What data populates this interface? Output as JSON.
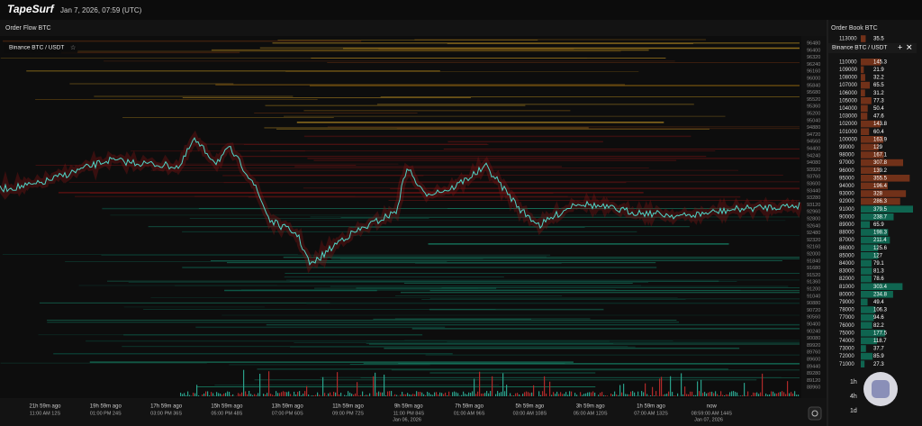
{
  "header": {
    "brand": "TapeSurf",
    "datetime": "Jan 7, 2026, 07:59 (UTC)"
  },
  "order_flow": {
    "title": "Order Flow BTC",
    "symbol": "Binance BTC / USDT",
    "price_labels": [
      "96480",
      "96400",
      "96320",
      "96240",
      "96160",
      "96000",
      "95840",
      "95680",
      "95520",
      "95360",
      "95200",
      "95040",
      "94880",
      "94720",
      "94560",
      "94400",
      "94240",
      "94080",
      "93920",
      "93760",
      "93600",
      "93440",
      "93280",
      "93120",
      "92960",
      "92800",
      "92640",
      "92480",
      "92320",
      "92160",
      "92000",
      "91840",
      "91680",
      "91520",
      "91360",
      "91200",
      "91040",
      "90880",
      "90720",
      "90560",
      "90400",
      "90240",
      "90080",
      "89920",
      "89760",
      "89600",
      "89440",
      "89280",
      "89120",
      "88960"
    ],
    "time_labels": [
      {
        "ago": "21h 59m ago",
        "time": "11:00 AM 12S"
      },
      {
        "ago": "19h 59m ago",
        "time": "01:00 PM 24S"
      },
      {
        "ago": "17h 59m ago",
        "time": "03:00 PM 36S"
      },
      {
        "ago": "15h 59m ago",
        "time": "05:00 PM 48S"
      },
      {
        "ago": "13h 59m ago",
        "time": "07:00 PM 60S"
      },
      {
        "ago": "11h 59m ago",
        "time": "09:00 PM 72S"
      },
      {
        "ago": "9h 59m ago",
        "time": "11:00 PM 84S"
      },
      {
        "ago": "7h 59m ago",
        "time": "01:00 AM 96S"
      },
      {
        "ago": "5h 59m ago",
        "time": "03:00 AM 108S"
      },
      {
        "ago": "3h 59m ago",
        "time": "05:00 AM 120S"
      },
      {
        "ago": "1h 59m ago",
        "time": "07:00 AM 132S"
      },
      {
        "ago": "now",
        "time": "08:59:00 AM 144S"
      }
    ],
    "date_labels": [
      "Jan 06, 2026",
      "Jan 07, 2026"
    ]
  },
  "order_book": {
    "title": "Order Book BTC",
    "symbol": "Binance BTC / USDT",
    "ask_color": "#8a3a1c",
    "bid_color": "#0f7a60",
    "asks": [
      {
        "price": 113000,
        "size": 35.5
      },
      {
        "price": 110000,
        "size": 145.3
      },
      {
        "price": 109000,
        "size": 21.9
      },
      {
        "price": 108000,
        "size": 32.2
      },
      {
        "price": 107000,
        "size": 65.5
      },
      {
        "price": 106000,
        "size": 31.2
      },
      {
        "price": 105000,
        "size": 77.3
      },
      {
        "price": 104000,
        "size": 50.4
      },
      {
        "price": 103000,
        "size": 47.6
      },
      {
        "price": 102000,
        "size": 143.8
      },
      {
        "price": 101000,
        "size": 60.4
      },
      {
        "price": 100000,
        "size": 163.9
      },
      {
        "price": 99000,
        "size": 129.0
      },
      {
        "price": 98000,
        "size": 167.1
      },
      {
        "price": 97000,
        "size": 307.8
      },
      {
        "price": 96000,
        "size": 139.2
      },
      {
        "price": 95000,
        "size": 355.5
      },
      {
        "price": 94000,
        "size": 196.4
      },
      {
        "price": 93000,
        "size": 328.0
      },
      {
        "price": 92000,
        "size": 286.3
      }
    ],
    "bids": [
      {
        "price": 91000,
        "size": 379.5
      },
      {
        "price": 90000,
        "size": 238.7
      },
      {
        "price": 89000,
        "size": 65.9
      },
      {
        "price": 88000,
        "size": 198.3
      },
      {
        "price": 87000,
        "size": 211.4
      },
      {
        "price": 86000,
        "size": 125.6
      },
      {
        "price": 85000,
        "size": 127.0
      },
      {
        "price": 84000,
        "size": 79.1
      },
      {
        "price": 83000,
        "size": 81.3
      },
      {
        "price": 82000,
        "size": 78.6
      },
      {
        "price": 81000,
        "size": 303.4
      },
      {
        "price": 80000,
        "size": 234.8
      },
      {
        "price": 79000,
        "size": 49.4
      },
      {
        "price": 78000,
        "size": 106.3
      },
      {
        "price": 77000,
        "size": 94.6
      },
      {
        "price": 76000,
        "size": 82.2
      },
      {
        "price": 75000,
        "size": 177.5
      },
      {
        "price": 74000,
        "size": 118.7
      },
      {
        "price": 73000,
        "size": 37.7
      },
      {
        "price": 72000,
        "size": 85.9
      },
      {
        "price": 71000,
        "size": 27.3
      }
    ],
    "timeframes": [
      "1h",
      "4h",
      "1d"
    ]
  }
}
